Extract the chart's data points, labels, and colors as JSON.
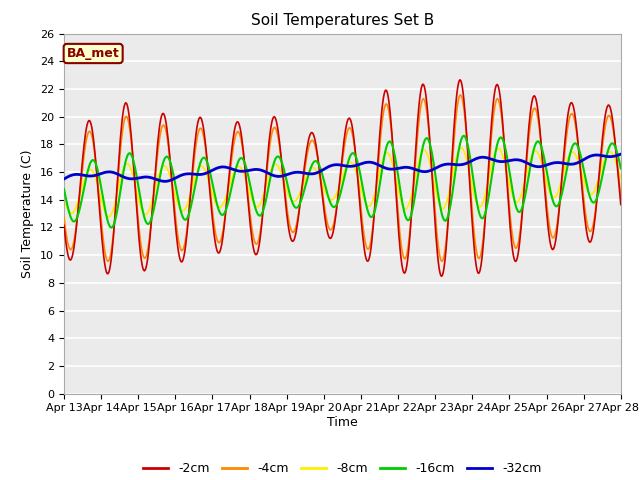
{
  "title": "Soil Temperatures Set B",
  "xlabel": "Time",
  "ylabel": "Soil Temperature (C)",
  "annotation": "BA_met",
  "ylim": [
    0,
    26
  ],
  "yticks": [
    0,
    2,
    4,
    6,
    8,
    10,
    12,
    14,
    16,
    18,
    20,
    22,
    24,
    26
  ],
  "xtick_labels": [
    "Apr 13",
    "Apr 14",
    "Apr 15",
    "Apr 16",
    "Apr 17",
    "Apr 18",
    "Apr 19",
    "Apr 20",
    "Apr 21",
    "Apr 22",
    "Apr 23",
    "Apr 24",
    "Apr 25",
    "Apr 26",
    "Apr 27",
    "Apr 28"
  ],
  "series_names": [
    "-2cm",
    "-4cm",
    "-8cm",
    "-16cm",
    "-32cm"
  ],
  "series_colors": [
    "#cc0000",
    "#ff8800",
    "#ffee00",
    "#00cc00",
    "#0000cc"
  ],
  "series_lws": [
    1.2,
    1.2,
    1.2,
    1.5,
    2.0
  ],
  "fig_bg": "#ffffff",
  "plot_bg": "#ebebeb",
  "grid_color": "#ffffff",
  "annotation_fc": "#ffffcc",
  "annotation_ec": "#880000",
  "annotation_color": "#880000"
}
